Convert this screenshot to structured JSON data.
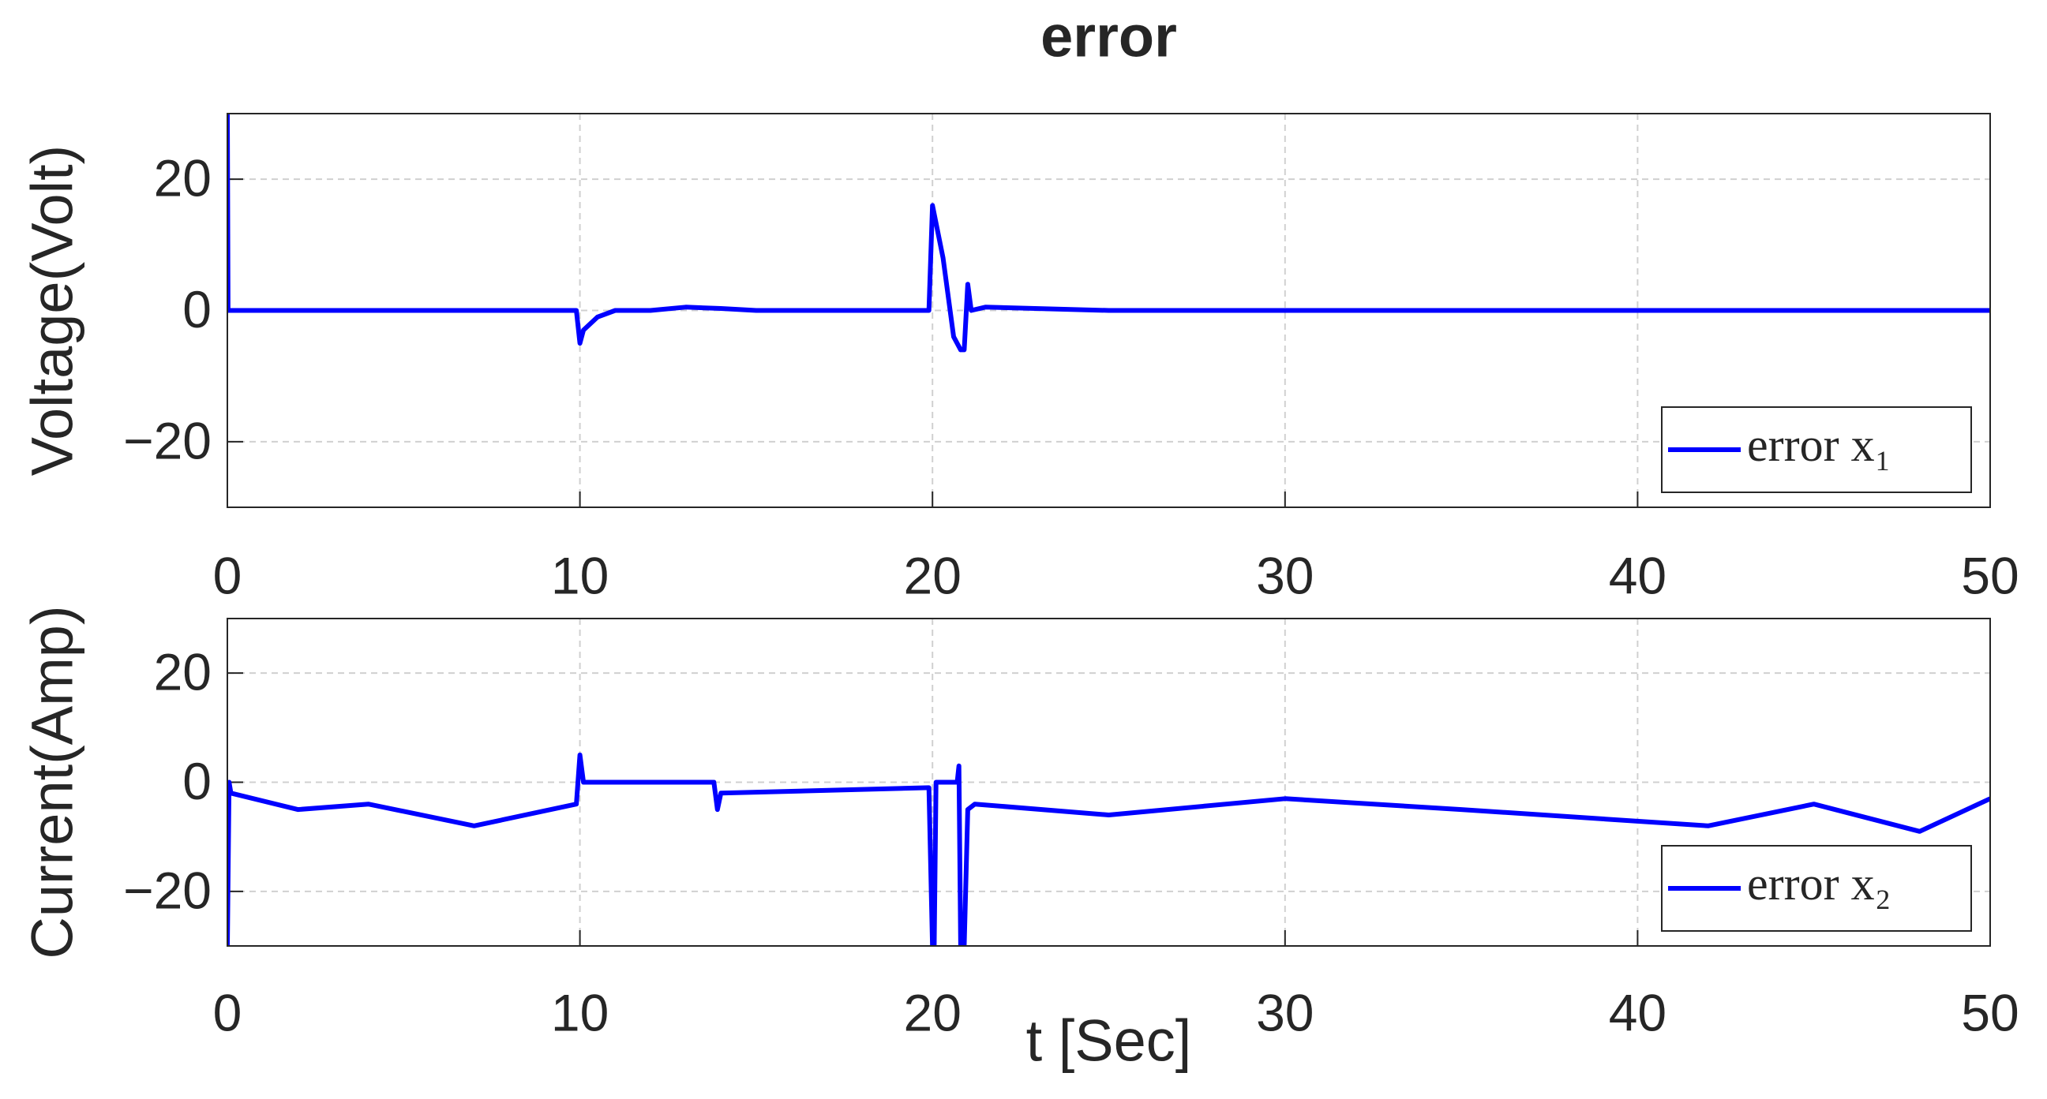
{
  "chart_data": [
    {
      "type": "line",
      "title": "error",
      "ylabel": "Voltage(Volt)",
      "x": [
        0,
        0.02,
        0.1,
        9.9,
        10,
        10.1,
        10.5,
        11,
        12,
        13,
        14,
        15,
        19.9,
        20,
        20.3,
        20.6,
        20.8,
        20.9,
        21,
        21.1,
        21.5,
        25,
        30,
        40,
        50
      ],
      "series": [
        {
          "name": "error x₁",
          "color": "#0000ff",
          "values": [
            30,
            0,
            0,
            0,
            -5,
            -3,
            -1,
            0,
            0,
            0.5,
            0.3,
            0,
            0,
            16,
            8,
            -4,
            -6,
            -6,
            4,
            0,
            0.5,
            0,
            0,
            0,
            0
          ]
        }
      ],
      "xlim": [
        0,
        50
      ],
      "xticks": [
        0,
        10,
        20,
        30,
        40,
        50
      ],
      "ylim": [
        -30,
        30
      ],
      "yticks": [
        {
          "value": -20,
          "label": "−20"
        },
        0,
        20
      ],
      "grid": true,
      "legend": "lower right"
    },
    {
      "type": "line",
      "xlabel": "t [Sec]",
      "ylabel": "Current(Amp)",
      "x": [
        0,
        0.05,
        0.1,
        2,
        4,
        7,
        9.9,
        10,
        10.1,
        12,
        13.8,
        13.9,
        14,
        19.9,
        20,
        20.05,
        20.1,
        20.7,
        20.75,
        20.8,
        20.9,
        21,
        21.2,
        25,
        30,
        35,
        42,
        45,
        48,
        50
      ],
      "series": [
        {
          "name": "error x₂",
          "color": "#0000ff",
          "values": [
            -30,
            0,
            -2,
            -5,
            -4,
            -8,
            -4,
            5,
            0,
            0,
            0,
            -5,
            -2,
            -1,
            -30,
            -30,
            0,
            0,
            3,
            -30,
            -30,
            -5,
            -4,
            -6,
            -3,
            -5,
            -8,
            -4,
            -9,
            -3
          ]
        }
      ],
      "xlim": [
        0,
        50
      ],
      "xticks": [
        0,
        10,
        20,
        30,
        40,
        50
      ],
      "ylim": [
        -30,
        30
      ],
      "yticks": [
        {
          "value": -20,
          "label": "−20"
        },
        0,
        20
      ],
      "grid": true,
      "legend": "lower right"
    }
  ]
}
